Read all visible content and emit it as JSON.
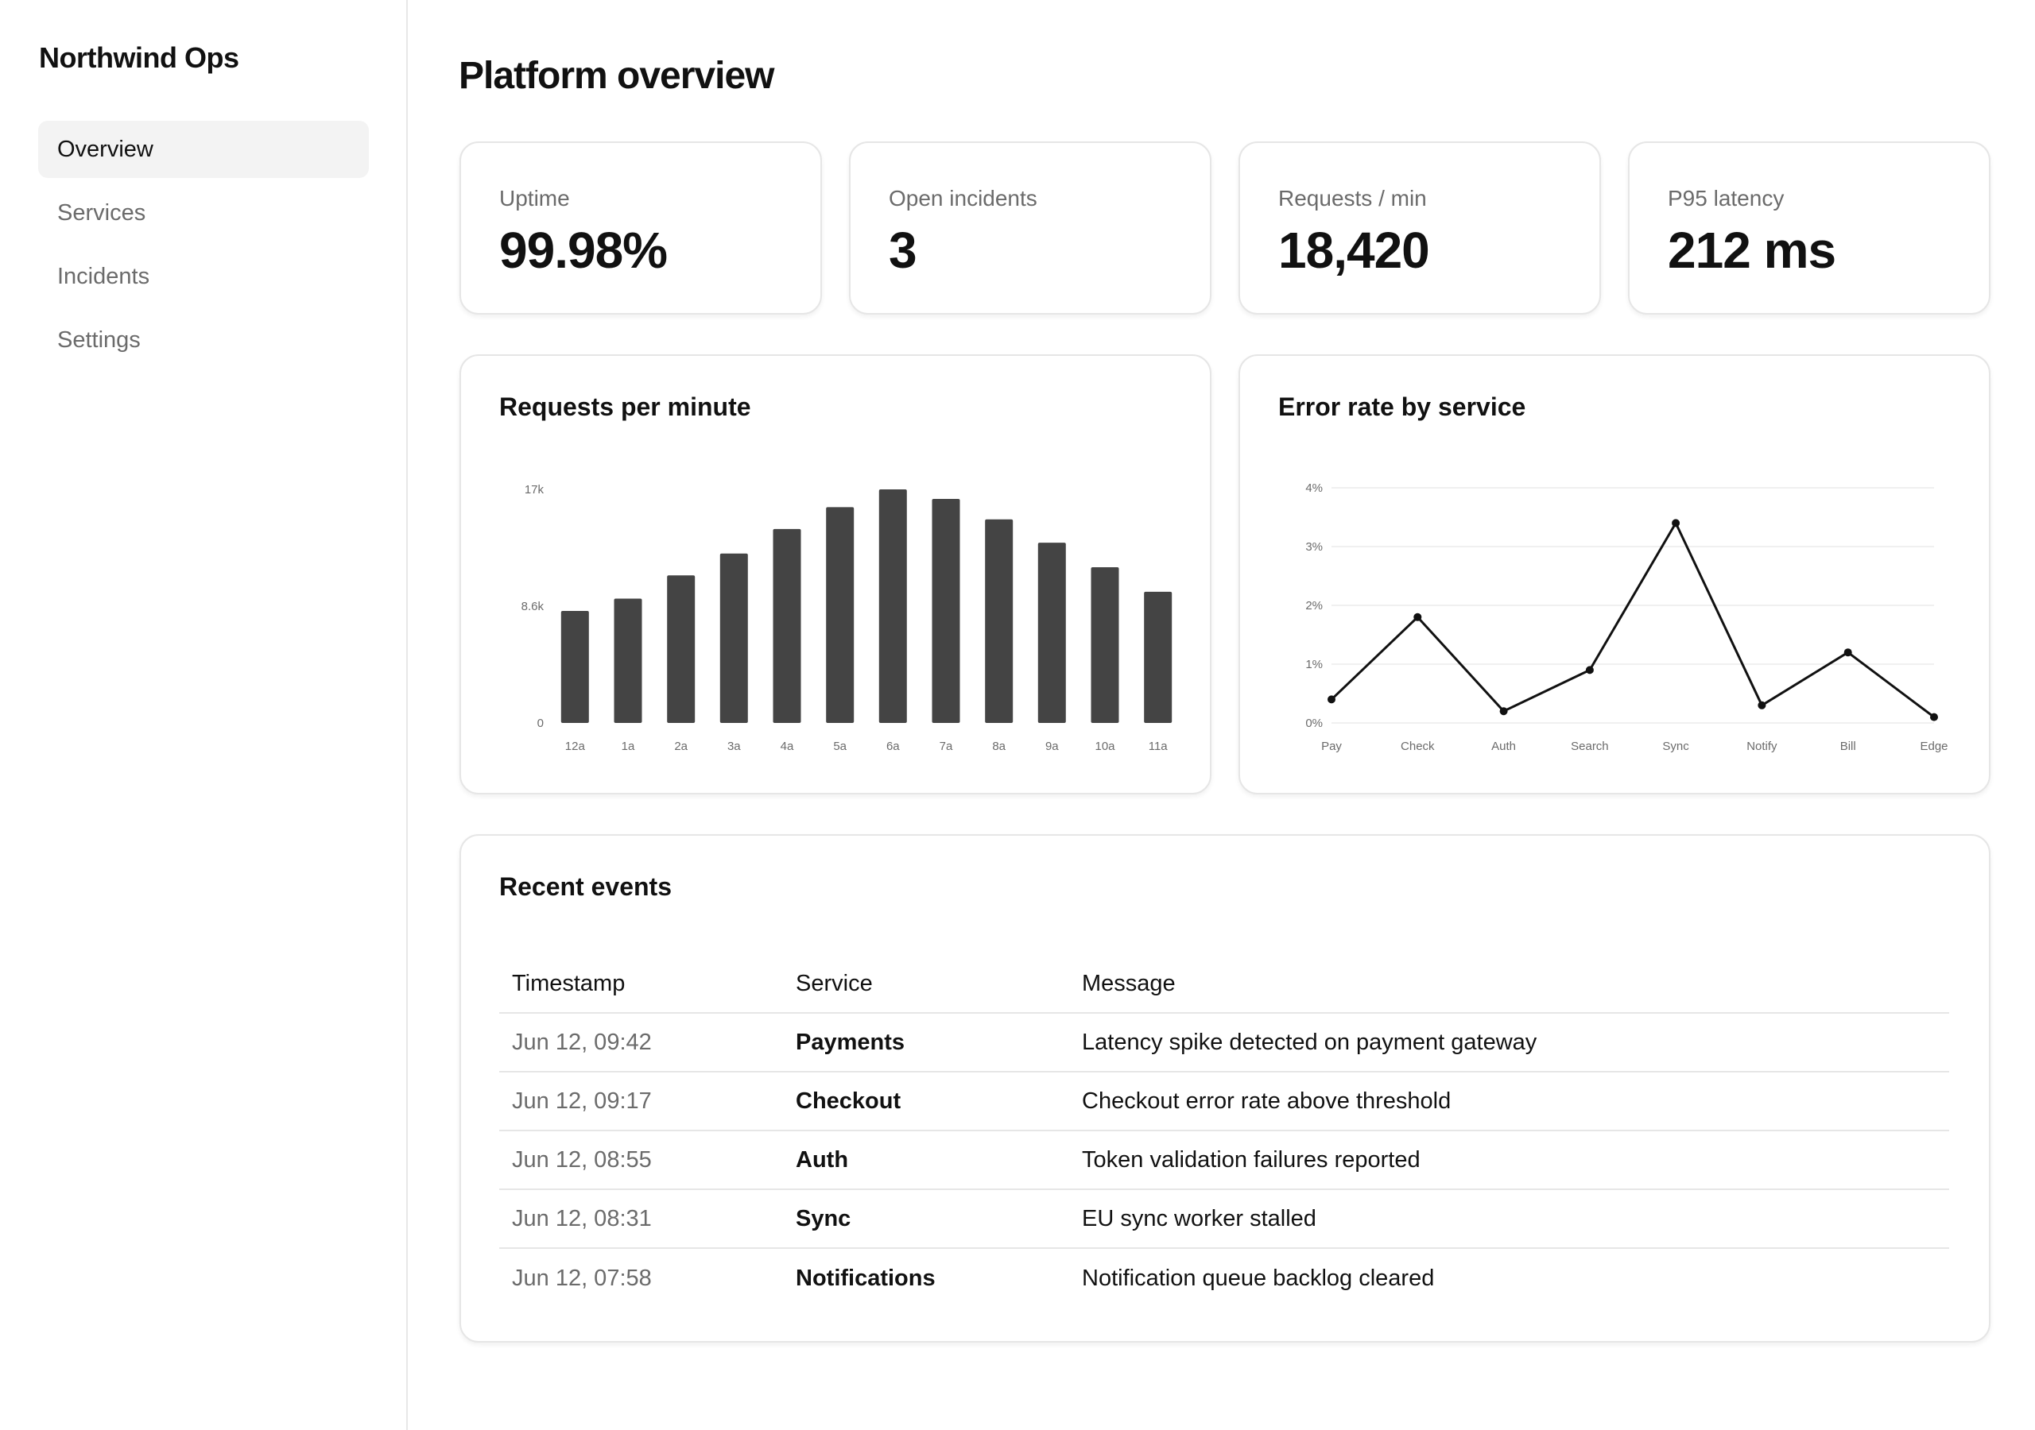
{
  "app": {
    "brand": "Northwind Ops"
  },
  "sidebar": {
    "items": [
      {
        "label": "Overview",
        "active": true
      },
      {
        "label": "Services",
        "active": false
      },
      {
        "label": "Incidents",
        "active": false
      },
      {
        "label": "Settings",
        "active": false
      }
    ]
  },
  "page": {
    "title": "Platform overview"
  },
  "kpis": [
    {
      "label": "Uptime",
      "value": "99.98%"
    },
    {
      "label": "Open incidents",
      "value": "3"
    },
    {
      "label": "Requests / min",
      "value": "18,420"
    },
    {
      "label": "P95 latency",
      "value": "212 ms"
    }
  ],
  "charts": {
    "requests_title": "Requests per minute",
    "errors_title": "Error rate by service"
  },
  "chart_data": [
    {
      "type": "bar",
      "title": "Requests per minute",
      "categories": [
        "12a",
        "1a",
        "2a",
        "3a",
        "4a",
        "5a",
        "6a",
        "7a",
        "8a",
        "9a",
        "10a",
        "11a"
      ],
      "values": [
        8200,
        9100,
        10800,
        12400,
        14200,
        15800,
        17100,
        16400,
        14900,
        13200,
        11400,
        9600
      ],
      "ylim": [
        0,
        17100
      ],
      "yticks": [
        {
          "value": 0,
          "label": "0"
        },
        {
          "value": 8550,
          "label": "8.6k"
        },
        {
          "value": 17100,
          "label": "17k"
        }
      ],
      "color": "#444444",
      "grid": false
    },
    {
      "type": "line",
      "title": "Error rate by service",
      "categories": [
        "Pay",
        "Check",
        "Auth",
        "Search",
        "Sync",
        "Notify",
        "Bill",
        "Edge"
      ],
      "values": [
        0.4,
        1.8,
        0.2,
        0.9,
        3.4,
        0.3,
        1.2,
        0.1
      ],
      "unit": "%",
      "ylim": [
        0,
        4
      ],
      "yticks": [
        {
          "value": 0,
          "label": "0%"
        },
        {
          "value": 1,
          "label": "1%"
        },
        {
          "value": 2,
          "label": "2%"
        },
        {
          "value": 3,
          "label": "3%"
        },
        {
          "value": 4,
          "label": "4%"
        }
      ],
      "color": "#111111",
      "grid": true
    }
  ],
  "events": {
    "title": "Recent events",
    "columns": [
      "Timestamp",
      "Service",
      "Message"
    ],
    "rows": [
      {
        "timestamp": "Jun 12, 09:42",
        "service": "Payments",
        "message": "Latency spike detected on payment gateway"
      },
      {
        "timestamp": "Jun 12, 09:17",
        "service": "Checkout",
        "message": "Checkout error rate above threshold"
      },
      {
        "timestamp": "Jun 12, 08:55",
        "service": "Auth",
        "message": "Token validation failures reported"
      },
      {
        "timestamp": "Jun 12, 08:31",
        "service": "Sync",
        "message": "EU sync worker stalled"
      },
      {
        "timestamp": "Jun 12, 07:58",
        "service": "Notifications",
        "message": "Notification queue backlog cleared"
      }
    ]
  }
}
